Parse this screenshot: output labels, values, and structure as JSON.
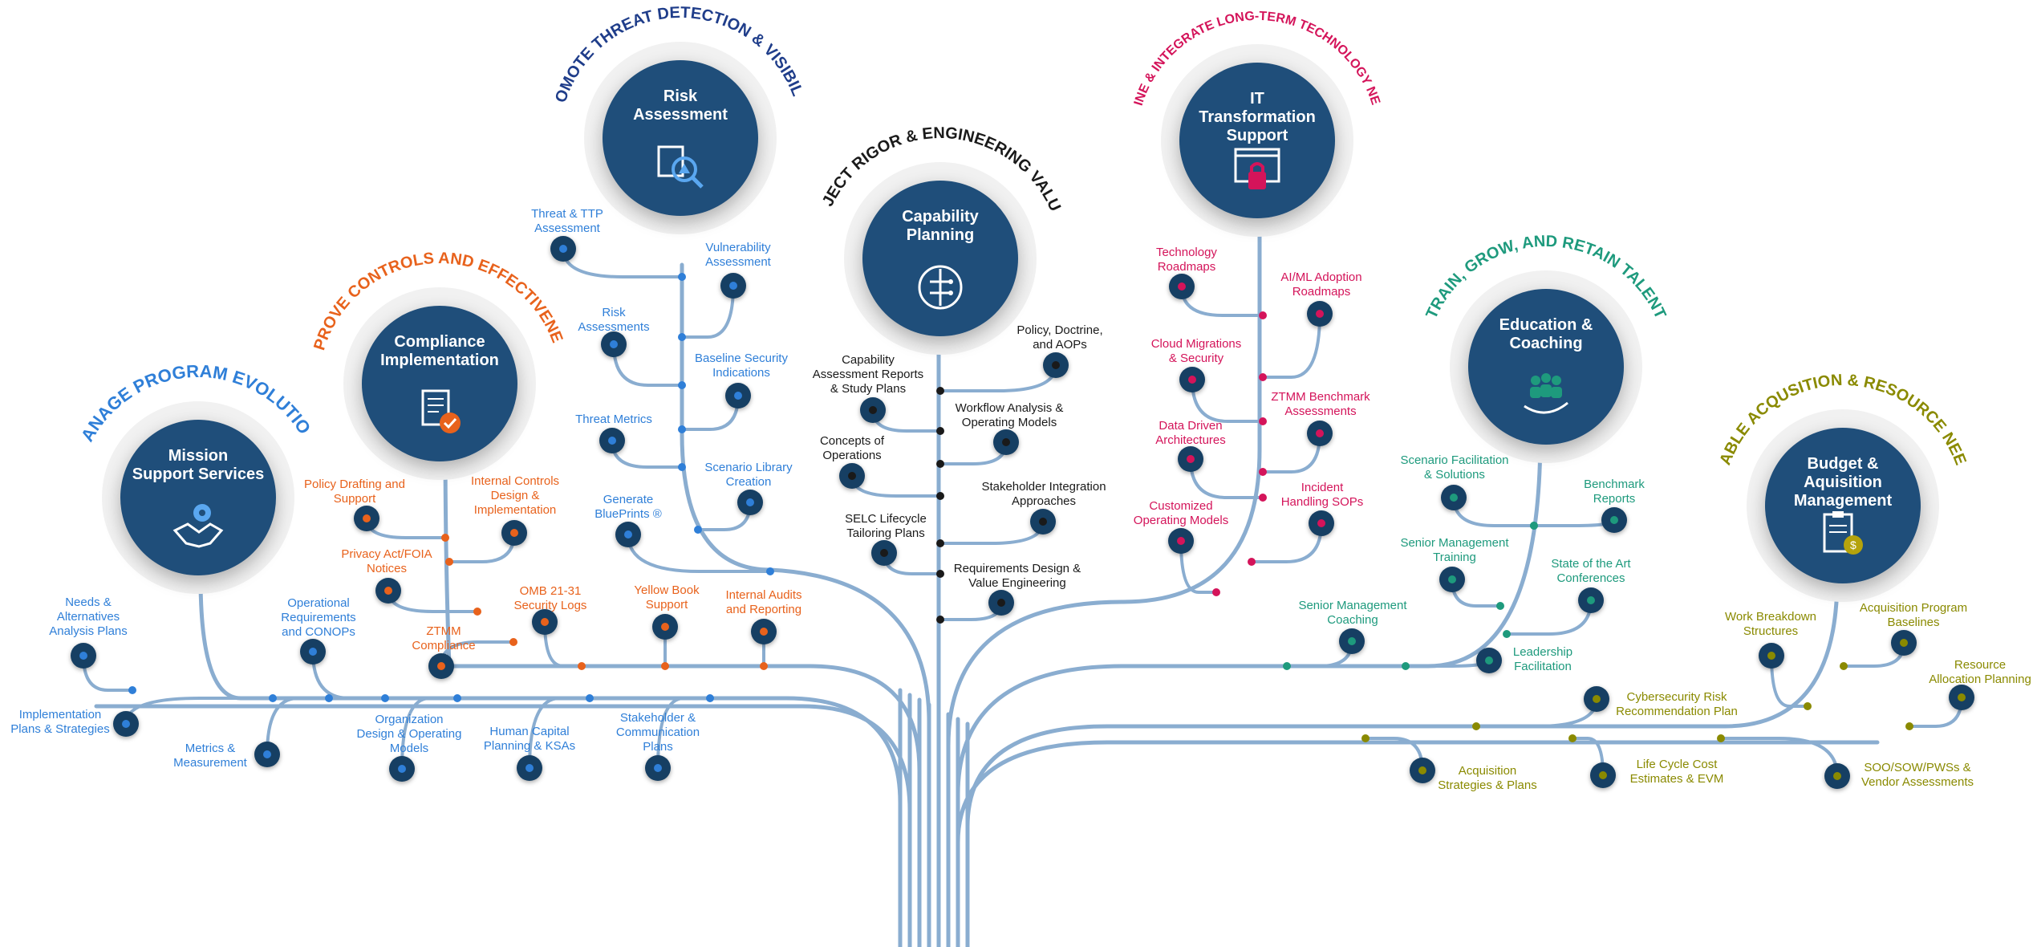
{
  "colors": {
    "trunk": "#8aadd0",
    "hub": "#1f4e7a",
    "node": "#163f63",
    "blue": "#2f7fd8",
    "orange": "#e8621c",
    "dark": "#1a1a1a",
    "crimson": "#d4145a",
    "teal": "#1e9a7d",
    "olive": "#8a8a00",
    "navy": "#1f3d8a"
  },
  "hubs": {
    "mission": {
      "title": "Mission\nSupport Services",
      "arc": "MANAGE PROGRAM EVOLUTION",
      "icon": "handshake-gear-icon"
    },
    "compliance": {
      "title": "Compliance\nImplementation",
      "arc": "IMPROVE CONTROLS AND EFFECTIVENESS",
      "icon": "document-check-icon"
    },
    "risk": {
      "title": "Risk\nAssessment",
      "arc": "PROMOTE THREAT DETECTION & VISIBILITY",
      "icon": "magnifier-warning-icon"
    },
    "capability": {
      "title": "Capability\nPlanning",
      "arc": "INJECT RIGOR & ENGINEERING VALUE",
      "icon": "circuit-icon"
    },
    "it": {
      "title": "IT\nTransformation\nSupport",
      "arc": "DEFINE & INTEGRATE LONG-TERM TECHNOLOGY NEEDS",
      "icon": "browser-lock-icon"
    },
    "education": {
      "title": "Education &\nCoaching",
      "arc": "TRAIN, GROW, AND RETAIN TALENT",
      "icon": "people-hand-icon"
    },
    "budget": {
      "title": "Budget &\nAquisition\nManagement",
      "arc": "ENABLE ACQUSITION & RESOURCE NEEDS",
      "icon": "clipboard-money-icon"
    }
  },
  "leaves": {
    "mission": [
      "Needs &\nAlternatives\nAnalysis Plans",
      "Operational\nRequirements\nand CONOPs",
      "Implementation\nPlans & Strategies",
      "Metrics &\nMeasurement",
      "Organization\nDesign & Operating\nModels",
      "Human Capital\nPlanning & KSAs",
      "Stakeholder &\nCommunication\nPlans"
    ],
    "compliance": [
      "Policy Drafting and\nSupport",
      "Internal Controls\nDesign &\nImplementation",
      "Privacy Act/FOIA\nNotices",
      "OMB 21-31\nSecurity Logs",
      "ZTMM\nCompliance",
      "Yellow Book\nSupport",
      "Internal Audits\nand Reporting"
    ],
    "risk": [
      "Threat & TTP\nAssessment",
      "Vulnerability\nAssessment",
      "Risk\nAssessments",
      "Baseline Security\nIndications",
      "Threat Metrics",
      "Scenario Library\nCreation",
      "Generate\nBluePrints ®"
    ],
    "capability": [
      "Policy, Doctrine,\nand AOPs",
      "Capability\nAssessment Reports\n& Study Plans",
      "Workflow Analysis &\nOperating Models",
      "Concepts of\nOperations",
      "Stakeholder Integration\nApproaches",
      "SELC Lifecycle\nTailoring Plans",
      "Requirements Design &\nValue Engineering"
    ],
    "it": [
      "Technology\nRoadmaps",
      "AI/ML Adoption\nRoadmaps",
      "Cloud Migrations\n& Security",
      "ZTMM Benchmark\nAssessments",
      "Data Driven\nArchitectures",
      "Incident\nHandling SOPs",
      "Customized\nOperating Models"
    ],
    "education": [
      "Scenario Facilitation\n& Solutions",
      "Benchmark\nReports",
      "Senior Management\nTraining",
      "State of the Art\nConferences",
      "Senior Management\nCoaching",
      "Leadership\nFacilitation"
    ],
    "budget": [
      "Work Breakdown\nStructures",
      "Acquisition Program\nBaselines",
      "Resource\nAllocation Planning",
      "Cybersecurity Risk\nRecommendation Plan",
      "Acquisition\nStrategies & Plans",
      "Life Cycle Cost\nEstimates & EVM",
      "SOO/SOW/PWSs &\nVendor Assessments"
    ]
  }
}
